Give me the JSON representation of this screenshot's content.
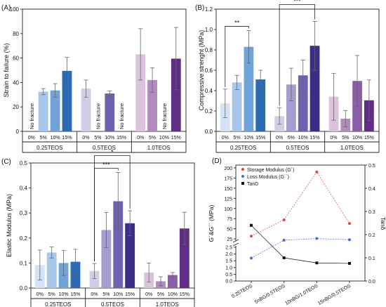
{
  "colors": {
    "tint_025": [
      "#d3e3f6",
      "#a6c7ea",
      "#6fa3d9",
      "#2a6bb4"
    ],
    "tint_05": [
      "#d2cde7",
      "#a59ccf",
      "#6f61ad",
      "#3b2e86"
    ],
    "tint_10": [
      "#dcc3dd",
      "#b28bbd",
      "#8a5ea6",
      "#5f2c86"
    ],
    "storage": "#e8433e",
    "loss": "#3a6bd8",
    "tand": "#111111"
  },
  "chart_data": [
    {
      "panel": "(A)",
      "type": "bar",
      "ylabel": "Strain to failure (%)",
      "ylim": [
        0,
        100
      ],
      "yticks": [
        "0",
        "20",
        "40",
        "60",
        "80",
        "100"
      ],
      "groups": [
        "0.25TEOS",
        "0.5TEOS",
        "1.0TEOS"
      ],
      "categories": [
        "0%",
        "5%",
        "10%",
        "15%"
      ],
      "no_fracture_label": "No fracture",
      "series": [
        {
          "values": [
            null,
            32.5,
            33.5,
            49.5
          ],
          "errors": [
            null,
            2.5,
            5.5,
            11
          ]
        },
        {
          "values": [
            35,
            null,
            31,
            null
          ],
          "errors": [
            7,
            null,
            2,
            null
          ]
        },
        {
          "values": [
            63,
            42,
            null,
            59.5
          ],
          "errors": [
            21,
            10,
            null,
            25.5
          ]
        }
      ],
      "no_fracture": [
        [
          0
        ],
        [
          1,
          3
        ],
        [
          2
        ]
      ]
    },
    {
      "panel": "(B)",
      "type": "bar",
      "ylabel": "Compressive strenght (MPa)",
      "ylim": [
        0,
        1.2
      ],
      "yticks": [
        "0.0",
        "0.2",
        "0.4",
        "0.6",
        "0.8",
        "1.0",
        "1.2"
      ],
      "groups": [
        "0.25TEOS",
        "0.5TEOS",
        "1.0TEOS"
      ],
      "categories": [
        "0%",
        "5%",
        "10%",
        "15%"
      ],
      "series": [
        {
          "values": [
            0.275,
            0.48,
            0.83,
            0.51
          ],
          "errors": [
            0.14,
            0.07,
            0.16,
            0.09
          ]
        },
        {
          "values": [
            0.15,
            0.46,
            0.55,
            0.84
          ],
          "errors": [
            0.08,
            0.16,
            0.15,
            0.24
          ]
        },
        {
          "values": [
            0.34,
            0.125,
            0.495,
            0.305
          ],
          "errors": [
            0.23,
            0.08,
            0.25,
            0.2
          ]
        }
      ],
      "significance": [
        {
          "group": 0,
          "from": 0,
          "to": 2,
          "label": "**"
        },
        {
          "group": 1,
          "from": 0,
          "to": 3,
          "label": "***"
        }
      ]
    },
    {
      "panel": "(C)",
      "type": "bar",
      "ylabel": "Elastic Modulus (MPa)",
      "ylim": [
        0,
        0.5
      ],
      "yticks": [
        "0.0",
        "0.1",
        "0.2",
        "0.3",
        "0.4",
        "0.5"
      ],
      "groups": [
        "0.25TEOS",
        "0.5TEOS",
        "1.0TEOS"
      ],
      "categories": [
        "0%",
        "5%",
        "10%",
        "15%"
      ],
      "series": [
        {
          "values": [
            0.092,
            0.142,
            0.1,
            0.105
          ],
          "errors": [
            0.06,
            0.022,
            0.05,
            0.05
          ]
        },
        {
          "values": [
            0.068,
            0.232,
            0.347,
            0.259
          ],
          "errors": [
            0.03,
            0.07,
            0.115,
            0.05
          ]
        },
        {
          "values": [
            0.062,
            0.027,
            0.052,
            0.238
          ],
          "errors": [
            0.038,
            0.018,
            0.01,
            0.065
          ]
        }
      ],
      "significance": [
        {
          "group": 1,
          "from": 0,
          "to": 2,
          "label": "***"
        },
        {
          "group": 1,
          "from": 0,
          "to": 3,
          "label": "*"
        }
      ]
    },
    {
      "panel": "(D)",
      "type": "line",
      "ylabel_left": "G´&G´´ (MPa)",
      "ylabel_right": "Tanδ",
      "categories": [
        "0.25TEOS",
        "5nBG/0.5TEOS",
        "10nBG/1.0TEOS",
        "15nBG/0.5TEOS"
      ],
      "left_upper_ylim": [
        20,
        200
      ],
      "left_upper_ticks": [
        "25",
        "50",
        "75",
        "100",
        "125",
        "150",
        "175",
        "200"
      ],
      "left_lower_ylim": [
        0,
        2.5
      ],
      "left_lower_ticks": [
        "0.0",
        "0.5",
        "1.0",
        "1.5",
        "2.0",
        "2.5"
      ],
      "right_ylim": [
        0,
        0.5
      ],
      "right_ticks": [
        "0.0",
        "0.1",
        "0.2",
        "0.3",
        "0.4",
        "0.5"
      ],
      "series": [
        {
          "name": "Storage Modulus (G´)",
          "axis": "left",
          "values": [
            32,
            72,
            190,
            63
          ]
        },
        {
          "name": "Loss Modulus (G´´)",
          "axis": "left",
          "values": [
            1.7,
            22,
            26,
            23
          ]
        },
        {
          "name": "TanD",
          "axis": "right",
          "values": [
            0.24,
            0.1,
            0.078,
            0.076
          ]
        }
      ]
    }
  ]
}
